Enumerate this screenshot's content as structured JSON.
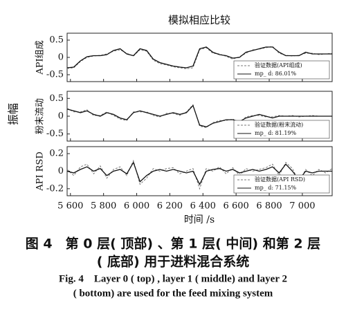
{
  "title": "模拟相应比较",
  "y_label": "振幅",
  "x_axis": {
    "label": "时间 /s",
    "xlim": [
      5580,
      7180
    ],
    "xticks": [
      {
        "value": 5600,
        "label": "5 600"
      },
      {
        "value": 5800,
        "label": "5 800"
      },
      {
        "value": 6000,
        "label": "6 000"
      },
      {
        "value": 6200,
        "label": "6 200"
      },
      {
        "value": 6400,
        "label": "6 400"
      },
      {
        "value": 6600,
        "label": "6 600"
      },
      {
        "value": 6800,
        "label": "6 800"
      },
      {
        "value": 7000,
        "label": "7 000"
      }
    ],
    "x": [
      5580,
      5620,
      5660,
      5700,
      5740,
      5780,
      5820,
      5860,
      5900,
      5940,
      5980,
      6020,
      6060,
      6100,
      6140,
      6180,
      6220,
      6260,
      6300,
      6340,
      6380,
      6420,
      6460,
      6500,
      6540,
      6580,
      6620,
      6660,
      6700,
      6740,
      6780,
      6820,
      6860,
      6900,
      6940,
      6980,
      7020,
      7060,
      7100,
      7140,
      7180
    ]
  },
  "chart_data": [
    {
      "type": "line",
      "ylabel": "API组成",
      "ylim": [
        -0.7,
        0.7
      ],
      "yticks": [
        -0.5,
        0,
        0.5
      ],
      "series": [
        {
          "name": "验证数据(API组成)",
          "color": "#777777",
          "dash": true,
          "values": [
            -0.32,
            -0.3,
            -0.12,
            0.0,
            0.04,
            0.06,
            0.1,
            0.18,
            0.22,
            0.12,
            0.04,
            0.22,
            0.18,
            -0.08,
            -0.18,
            -0.22,
            -0.27,
            -0.3,
            -0.33,
            -0.3,
            0.22,
            0.28,
            0.12,
            0.1,
            0.03,
            -0.05,
            0.02,
            0.12,
            0.22,
            0.24,
            0.28,
            0.32,
            0.12,
            0.06,
            0.04,
            0.06,
            0.12,
            0.12,
            0.08,
            0.1,
            0.12
          ]
        },
        {
          "name": "mp_ d: 86.01%",
          "color": "#111111",
          "dash": false,
          "values": [
            -0.3,
            -0.28,
            -0.1,
            0.02,
            0.05,
            0.05,
            0.08,
            0.2,
            0.25,
            0.1,
            0.05,
            0.25,
            0.2,
            -0.05,
            -0.15,
            -0.2,
            -0.25,
            -0.28,
            -0.3,
            -0.25,
            0.25,
            0.3,
            0.15,
            0.08,
            0.05,
            -0.02,
            0.0,
            0.15,
            0.2,
            0.25,
            0.3,
            0.3,
            0.15,
            0.05,
            0.05,
            0.05,
            0.15,
            0.1,
            0.1,
            0.1,
            0.1
          ]
        }
      ]
    },
    {
      "type": "line",
      "ylabel": "粉末流动",
      "ylim": [
        -0.7,
        0.7
      ],
      "yticks": [
        -0.5,
        0,
        0.5
      ],
      "series": [
        {
          "name": "验证数据(粉末流动)",
          "color": "#777777",
          "dash": true,
          "values": [
            0.22,
            0.12,
            0.12,
            0.18,
            0.02,
            0.02,
            0.12,
            0.02,
            -0.08,
            -0.12,
            0.12,
            0.12,
            0.12,
            0.02,
            -0.02,
            0.08,
            0.08,
            0.02,
            0.12,
            0.32,
            -0.28,
            -0.32,
            -0.18,
            -0.12,
            -0.12,
            -0.08,
            -0.18,
            -0.02,
            0.02,
            0.02,
            -0.02,
            -0.02,
            0.02,
            0.0,
            0.02,
            -0.02,
            0.0,
            0.02,
            0.0,
            0.0,
            0.0
          ]
        },
        {
          "name": "mp_ d: 81.19%",
          "color": "#111111",
          "dash": false,
          "values": [
            0.2,
            0.15,
            0.1,
            0.15,
            0.05,
            0.0,
            0.1,
            0.05,
            -0.05,
            -0.1,
            0.1,
            0.15,
            0.1,
            0.05,
            0.0,
            0.05,
            0.1,
            0.05,
            0.1,
            0.3,
            -0.25,
            -0.3,
            -0.2,
            -0.15,
            -0.1,
            -0.1,
            -0.15,
            -0.05,
            0.0,
            0.05,
            0.0,
            -0.05,
            0.0,
            0.0,
            0.0,
            0.0,
            0.0,
            0.0,
            0.0,
            0.0,
            0.0
          ]
        }
      ]
    },
    {
      "type": "line",
      "ylabel": "API RSD",
      "ylim": [
        -0.28,
        0.28
      ],
      "yticks": [
        -0.2,
        0,
        0.2
      ],
      "series": [
        {
          "name": "验证数据(API RSD)",
          "color": "#777777",
          "dash": true,
          "values": [
            0.02,
            -0.05,
            0.05,
            0.08,
            -0.03,
            0.06,
            -0.08,
            0.02,
            0.05,
            -0.05,
            0.12,
            -0.15,
            -0.08,
            0.03,
            0.0,
            0.03,
            0.04,
            -0.03,
            0.0,
            0.03,
            -0.2,
            0.03,
            0.0,
            0.05,
            -0.03,
            0.04,
            -0.05,
            0.03,
            0.0,
            0.02,
            0.04,
            0.08,
            -0.05,
            0.1,
            0.03,
            -0.12,
            0.02,
            -0.05,
            0.02,
            -0.02,
            0.03
          ]
        },
        {
          "name": "mp_ d: 71.15%",
          "color": "#111111",
          "dash": false,
          "values": [
            0.0,
            -0.02,
            0.02,
            0.05,
            0.0,
            0.03,
            -0.05,
            0.0,
            0.02,
            -0.03,
            0.1,
            -0.12,
            -0.05,
            0.0,
            0.02,
            0.0,
            0.02,
            0.0,
            -0.02,
            0.0,
            -0.15,
            0.0,
            0.02,
            0.03,
            0.0,
            0.02,
            -0.02,
            0.0,
            0.02,
            0.0,
            0.02,
            0.05,
            -0.02,
            0.08,
            0.0,
            -0.1,
            0.0,
            -0.02,
            0.0,
            0.0,
            0.0
          ]
        }
      ]
    }
  ],
  "caption": {
    "zh": [
      "图 4　第 0 层( 顶部) 、第 1 层( 中间) 和第 2 层",
      "( 底部) 用于进料混合系统"
    ],
    "en": [
      "Fig. 4　Layer 0 ( top) , layer 1 ( middle) and layer 2",
      "( bottom) are used for the feed mixing system"
    ]
  }
}
